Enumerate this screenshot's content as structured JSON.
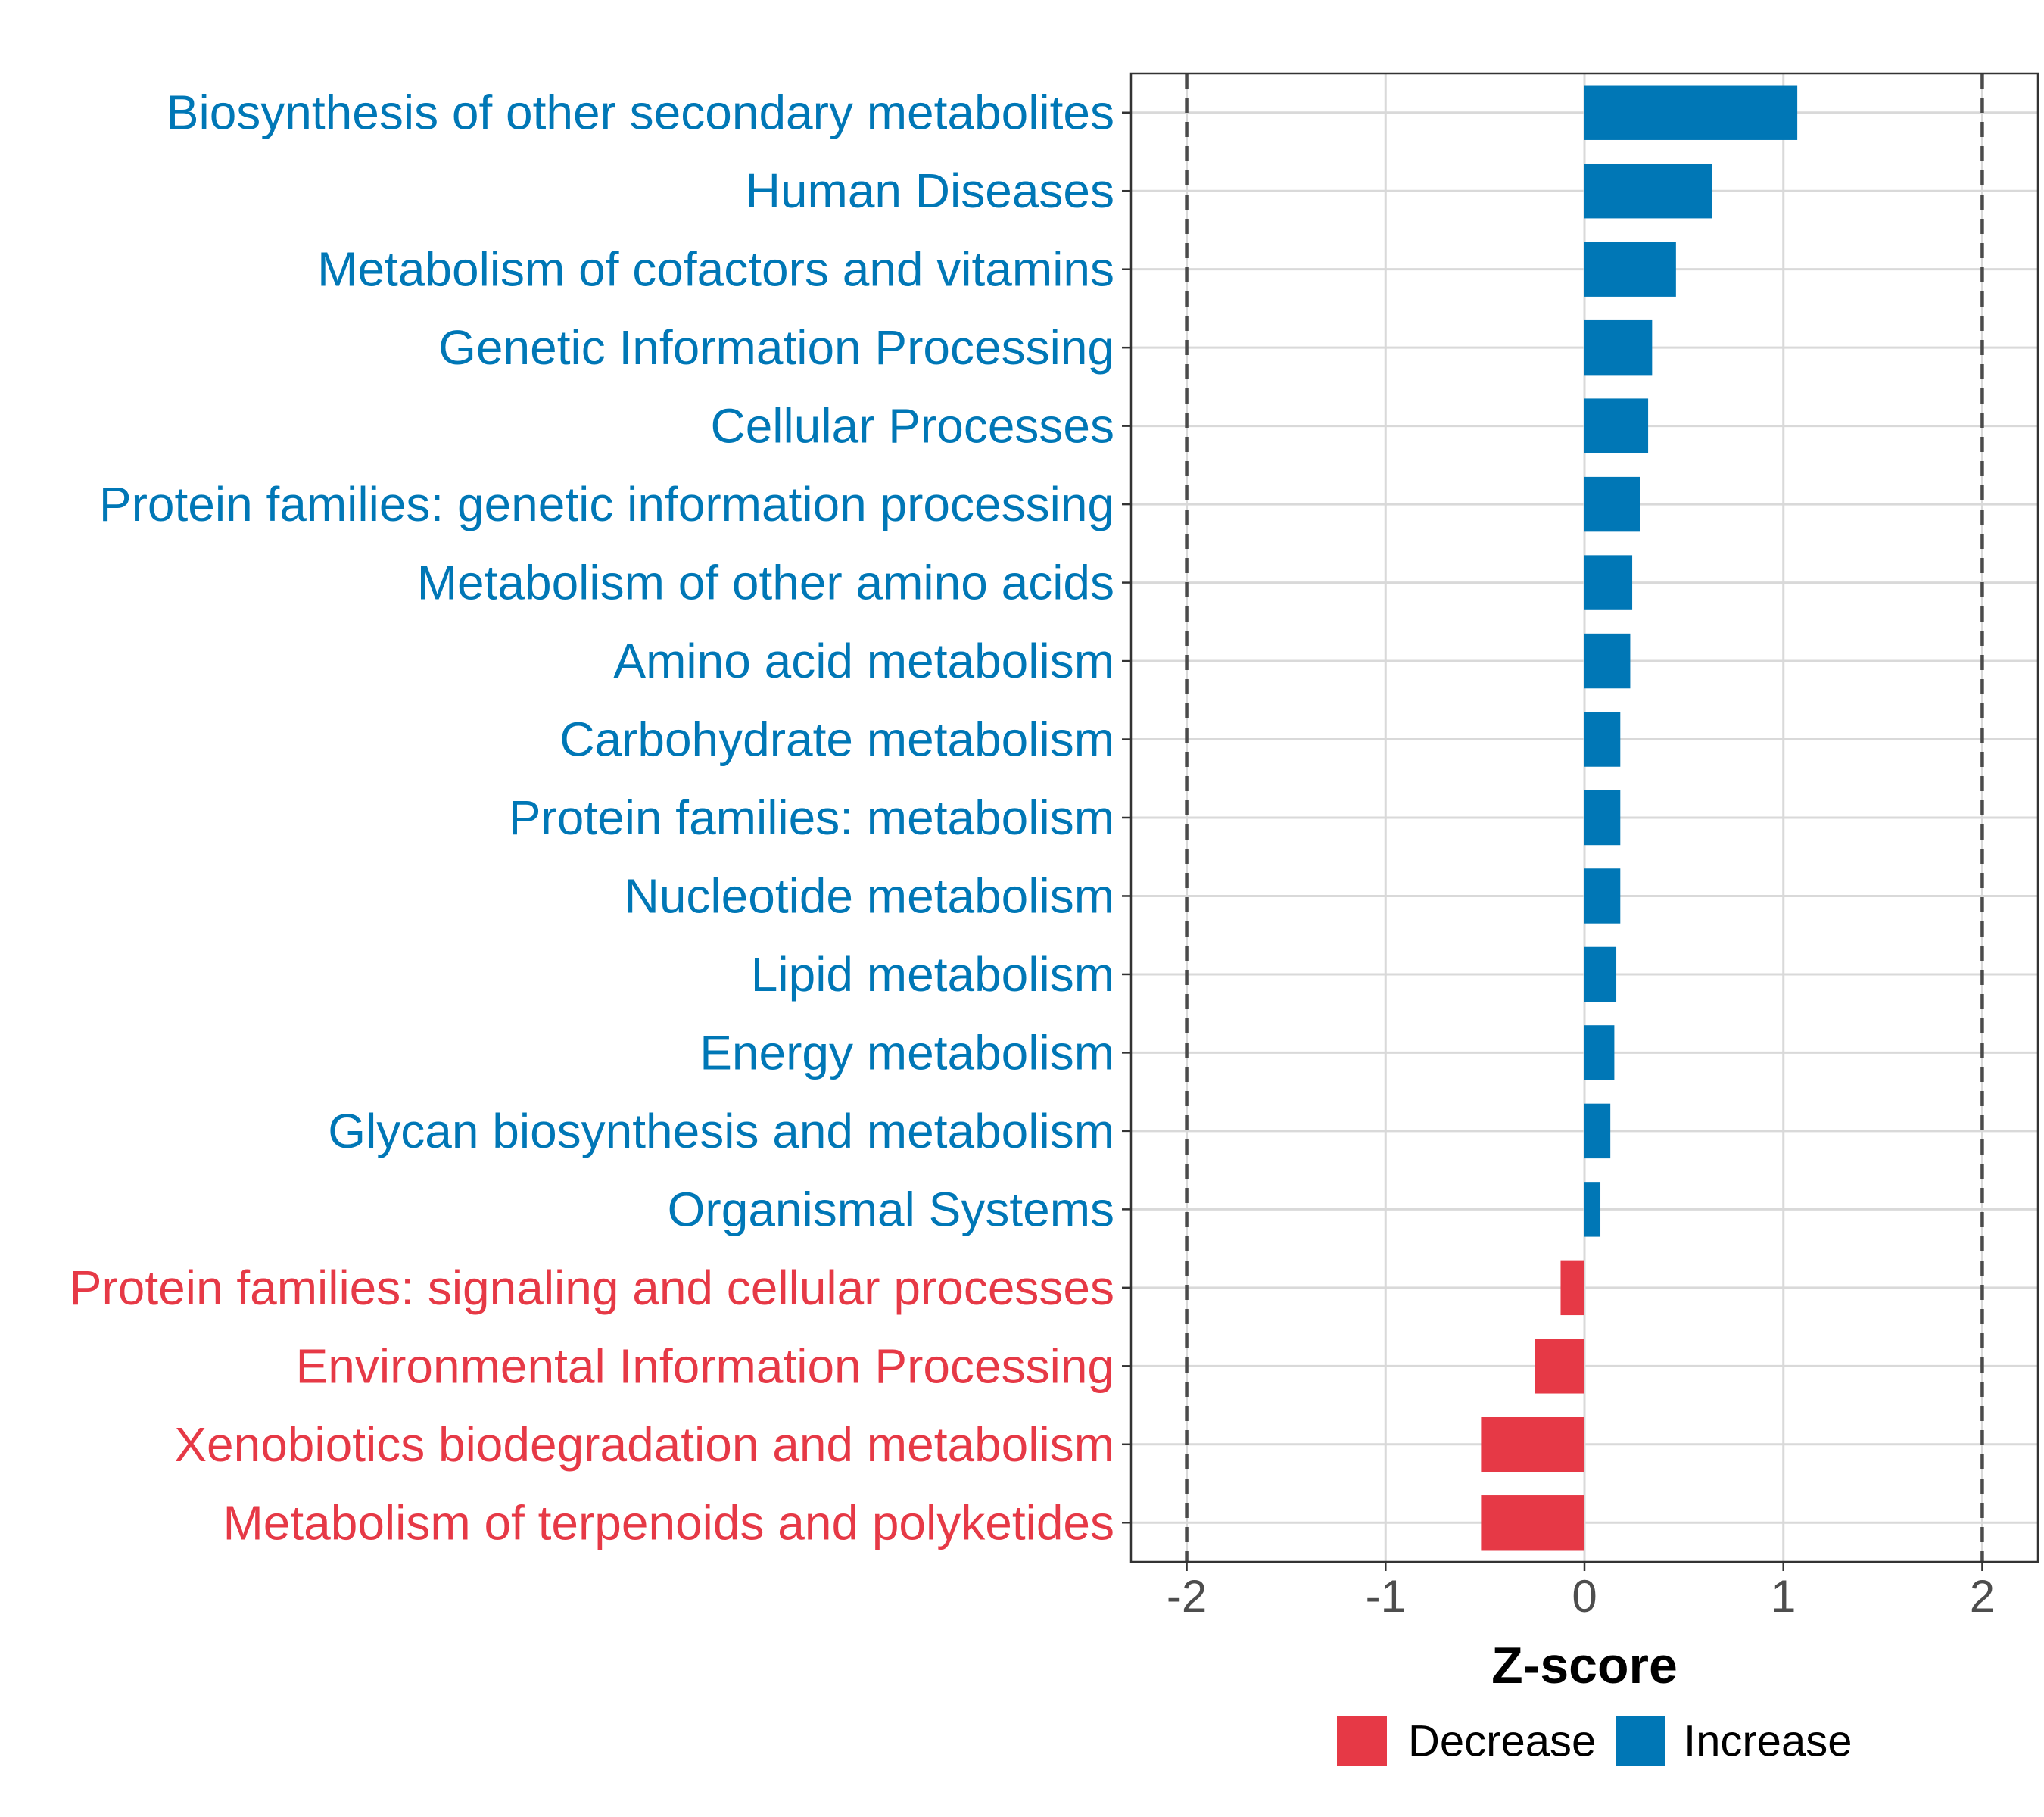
{
  "chart_data": {
    "type": "bar",
    "orientation": "horizontal",
    "xlabel": "Z-score",
    "xlim": [
      -2.28,
      2.28
    ],
    "xticks": [
      -2,
      -1,
      0,
      1,
      2
    ],
    "xtick_labels": [
      "-2",
      "-1",
      "0",
      "1",
      "2"
    ],
    "threshold_lines": [
      -2,
      2
    ],
    "grid": true,
    "colors": {
      "Decrease": "#e63946",
      "Increase": "#0077b6"
    },
    "categories": [
      "Biosynthesis of other secondary metabolites",
      "Human Diseases",
      "Metabolism of cofactors and vitamins",
      "Genetic Information Processing",
      "Cellular Processes",
      "Protein families: genetic information processing",
      "Metabolism of other amino acids",
      "Amino acid metabolism",
      "Carbohydrate metabolism",
      "Protein families: metabolism",
      "Nucleotide metabolism",
      "Lipid metabolism",
      "Energy metabolism",
      "Glycan biosynthesis and metabolism",
      "Organismal Systems",
      "Protein families: signaling and cellular processes",
      "Environmental Information Processing",
      "Xenobiotics biodegradation and metabolism",
      "Metabolism of terpenoids and polyketides"
    ],
    "values": [
      1.07,
      0.64,
      0.46,
      0.34,
      0.32,
      0.28,
      0.24,
      0.23,
      0.18,
      0.18,
      0.18,
      0.16,
      0.15,
      0.13,
      0.08,
      -0.12,
      -0.25,
      -0.52,
      -0.52
    ],
    "groups": [
      "Increase",
      "Increase",
      "Increase",
      "Increase",
      "Increase",
      "Increase",
      "Increase",
      "Increase",
      "Increase",
      "Increase",
      "Increase",
      "Increase",
      "Increase",
      "Increase",
      "Increase",
      "Decrease",
      "Decrease",
      "Decrease",
      "Decrease"
    ],
    "legend": {
      "position": "bottom",
      "entries": [
        "Decrease",
        "Increase"
      ]
    }
  }
}
